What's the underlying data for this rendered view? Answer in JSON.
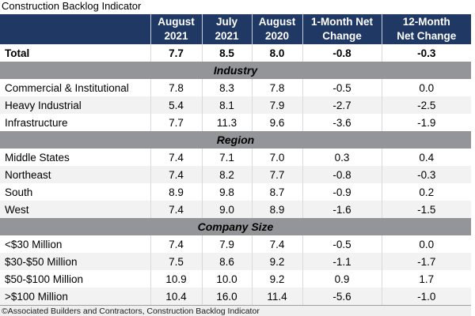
{
  "colors": {
    "header_bg": "#1F3864",
    "section_bg": "#949599",
    "alt_row": "#F2F2F2"
  },
  "chart_data": {
    "type": "table",
    "title": "Construction Backlog Indicator",
    "columns": [
      "",
      "August 2021",
      "July 2021",
      "August 2020",
      "1-Month Net Change",
      "12-Month Net Change"
    ],
    "header_lines": [
      [
        "August",
        "2021"
      ],
      [
        "July",
        "2021"
      ],
      [
        "August",
        "2020"
      ],
      [
        "1-Month Net",
        "Change"
      ],
      [
        "12-Month",
        "Net Change"
      ]
    ],
    "rows": [
      {
        "type": "total",
        "label": "Total",
        "values": [
          "7.7",
          "8.5",
          "8.0",
          "-0.8",
          "-0.3"
        ]
      },
      {
        "type": "section",
        "label": "Industry"
      },
      {
        "type": "data",
        "label": "Commercial & Institutional",
        "values": [
          "7.8",
          "8.3",
          "7.8",
          "-0.5",
          "0.0"
        ]
      },
      {
        "type": "data",
        "label": "Heavy Industrial",
        "values": [
          "5.4",
          "8.1",
          "7.9",
          "-2.7",
          "-2.5"
        ]
      },
      {
        "type": "data",
        "label": "Infrastructure",
        "values": [
          "7.7",
          "11.3",
          "9.6",
          "-3.6",
          "-1.9"
        ]
      },
      {
        "type": "section",
        "label": "Region"
      },
      {
        "type": "data",
        "label": "Middle States",
        "values": [
          "7.4",
          "7.1",
          "7.0",
          "0.3",
          "0.4"
        ]
      },
      {
        "type": "data",
        "label": "Northeast",
        "values": [
          "7.4",
          "8.2",
          "7.7",
          "-0.8",
          "-0.3"
        ]
      },
      {
        "type": "data",
        "label": "South",
        "values": [
          "8.9",
          "9.8",
          "8.7",
          "-0.9",
          "0.2"
        ]
      },
      {
        "type": "data",
        "label": "West",
        "values": [
          "7.4",
          "9.0",
          "8.9",
          "-1.6",
          "-1.5"
        ]
      },
      {
        "type": "section",
        "label": "Company Size"
      },
      {
        "type": "data",
        "label": "<$30 Million",
        "values": [
          "7.4",
          "7.9",
          "7.4",
          "-0.5",
          "0.0"
        ]
      },
      {
        "type": "data",
        "label": "$30-$50 Million",
        "values": [
          "7.5",
          "8.6",
          "9.2",
          "-1.1",
          "-1.7"
        ]
      },
      {
        "type": "data",
        "label": "$50-$100 Million",
        "values": [
          "10.9",
          "10.0",
          "9.2",
          "0.9",
          "1.7"
        ]
      },
      {
        "type": "data",
        "label": ">$100 Million",
        "values": [
          "10.4",
          "16.0",
          "11.4",
          "-5.6",
          "-1.0"
        ]
      }
    ],
    "footnote": "©Associated Builders and Contractors, Construction Backlog Indicator"
  }
}
